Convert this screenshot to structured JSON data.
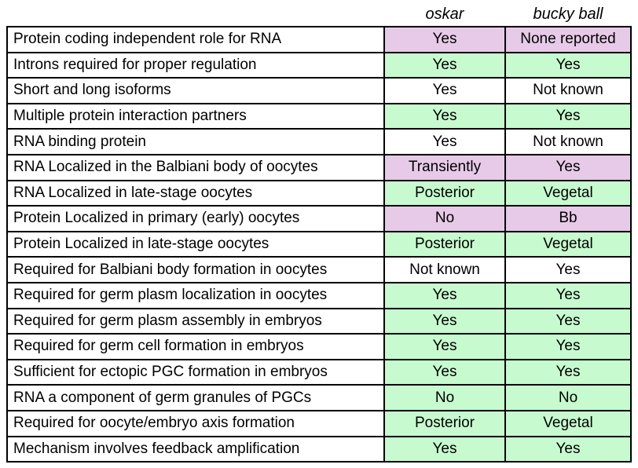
{
  "header": {
    "oskar": "oskar",
    "bucky": "bucky ball"
  },
  "colors": {
    "purple": "#E7CAE8",
    "green": "#C7FACF",
    "white": "#FFFFFF",
    "border": "#000000",
    "text": "#000000"
  },
  "table": {
    "rows": [
      {
        "label": "Protein coding independent role for RNA",
        "oskar": "Yes",
        "bucky": "None reported",
        "tone": "purple"
      },
      {
        "label": "Introns required for proper regulation",
        "oskar": "Yes",
        "bucky": "Yes",
        "tone": "green"
      },
      {
        "label": "Short and long isoforms",
        "oskar": "Yes",
        "bucky": "Not known",
        "tone": "white"
      },
      {
        "label": "Multiple protein interaction partners",
        "oskar": "Yes",
        "bucky": "Yes",
        "tone": "green"
      },
      {
        "label": "RNA binding protein",
        "oskar": "Yes",
        "bucky": "Not known",
        "tone": "white"
      },
      {
        "label": "RNA Localized in the Balbiani body of oocytes",
        "oskar": "Transiently",
        "bucky": "Yes",
        "tone": "purple"
      },
      {
        "label": "RNA Localized in late-stage oocytes",
        "oskar": "Posterior",
        "bucky": "Vegetal",
        "tone": "green"
      },
      {
        "label": "Protein Localized in primary (early) oocytes",
        "oskar": "No",
        "bucky": "Bb",
        "tone": "purple"
      },
      {
        "label": "Protein Localized in late-stage oocytes",
        "oskar": "Posterior",
        "bucky": "Vegetal",
        "tone": "green"
      },
      {
        "label": "Required for Balbiani body formation in oocytes",
        "oskar": "Not known",
        "bucky": "Yes",
        "tone": "white"
      },
      {
        "label": "Required for germ plasm localization in oocytes",
        "oskar": "Yes",
        "bucky": "Yes",
        "tone": "green"
      },
      {
        "label": "Required for germ plasm assembly in embryos",
        "oskar": "Yes",
        "bucky": "Yes",
        "tone": "green"
      },
      {
        "label": "Required for germ cell formation in embryos",
        "oskar": "Yes",
        "bucky": "Yes",
        "tone": "green"
      },
      {
        "label": "Sufficient for ectopic PGC formation in embryos",
        "oskar": "Yes",
        "bucky": "Yes",
        "tone": "green"
      },
      {
        "label": "RNA a component of germ granules of PGCs",
        "oskar": "No",
        "bucky": "No",
        "tone": "green"
      },
      {
        "label": "Required for oocyte/embryo axis formation",
        "oskar": "Posterior",
        "bucky": "Vegetal",
        "tone": "green"
      },
      {
        "label": "Mechanism involves feedback amplification",
        "oskar": "Yes",
        "bucky": "Yes",
        "tone": "green"
      }
    ]
  }
}
